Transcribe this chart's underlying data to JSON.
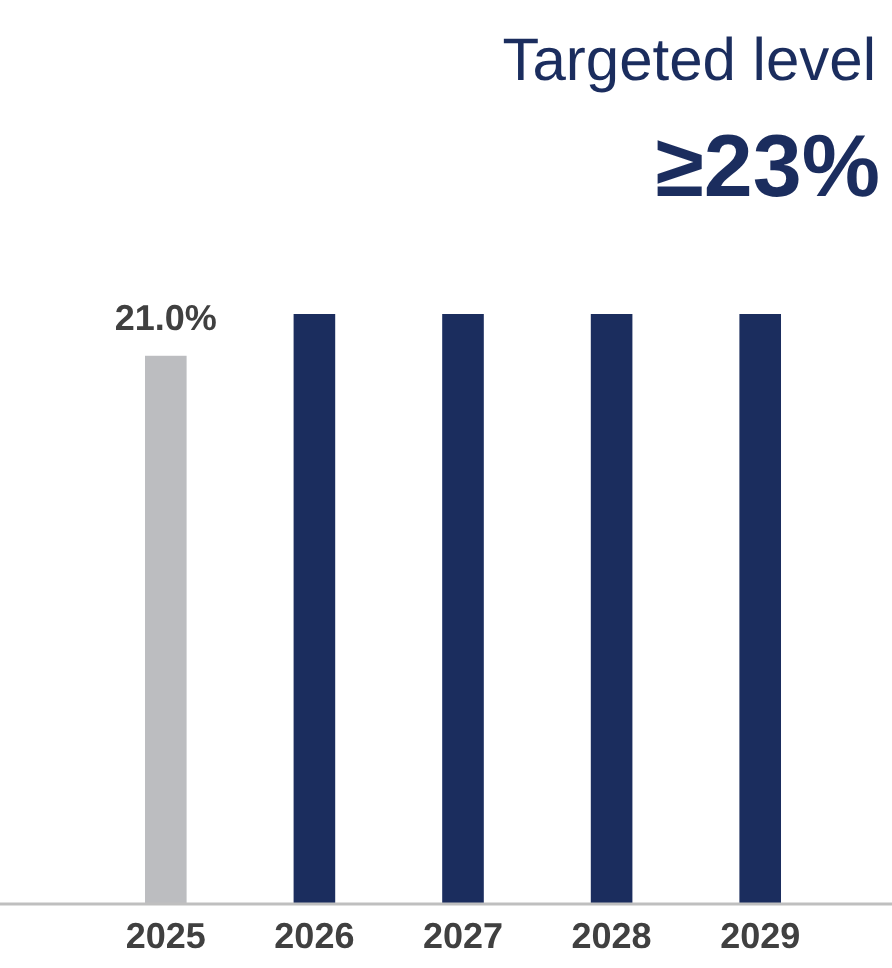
{
  "chart_data": {
    "type": "bar",
    "title": "Targeted level",
    "subtitle": "≥23%",
    "categories": [
      "2025",
      "2026",
      "2027",
      "2028",
      "2029"
    ],
    "values": [
      21.0,
      22.6,
      22.6,
      22.6,
      22.6
    ],
    "colors": [
      "#bcbdc0",
      "#1b2d5e",
      "#1b2d5e",
      "#1b2d5e",
      "#1b2d5e"
    ],
    "value_labels": [
      "21.0%",
      null,
      null,
      null,
      null
    ]
  }
}
